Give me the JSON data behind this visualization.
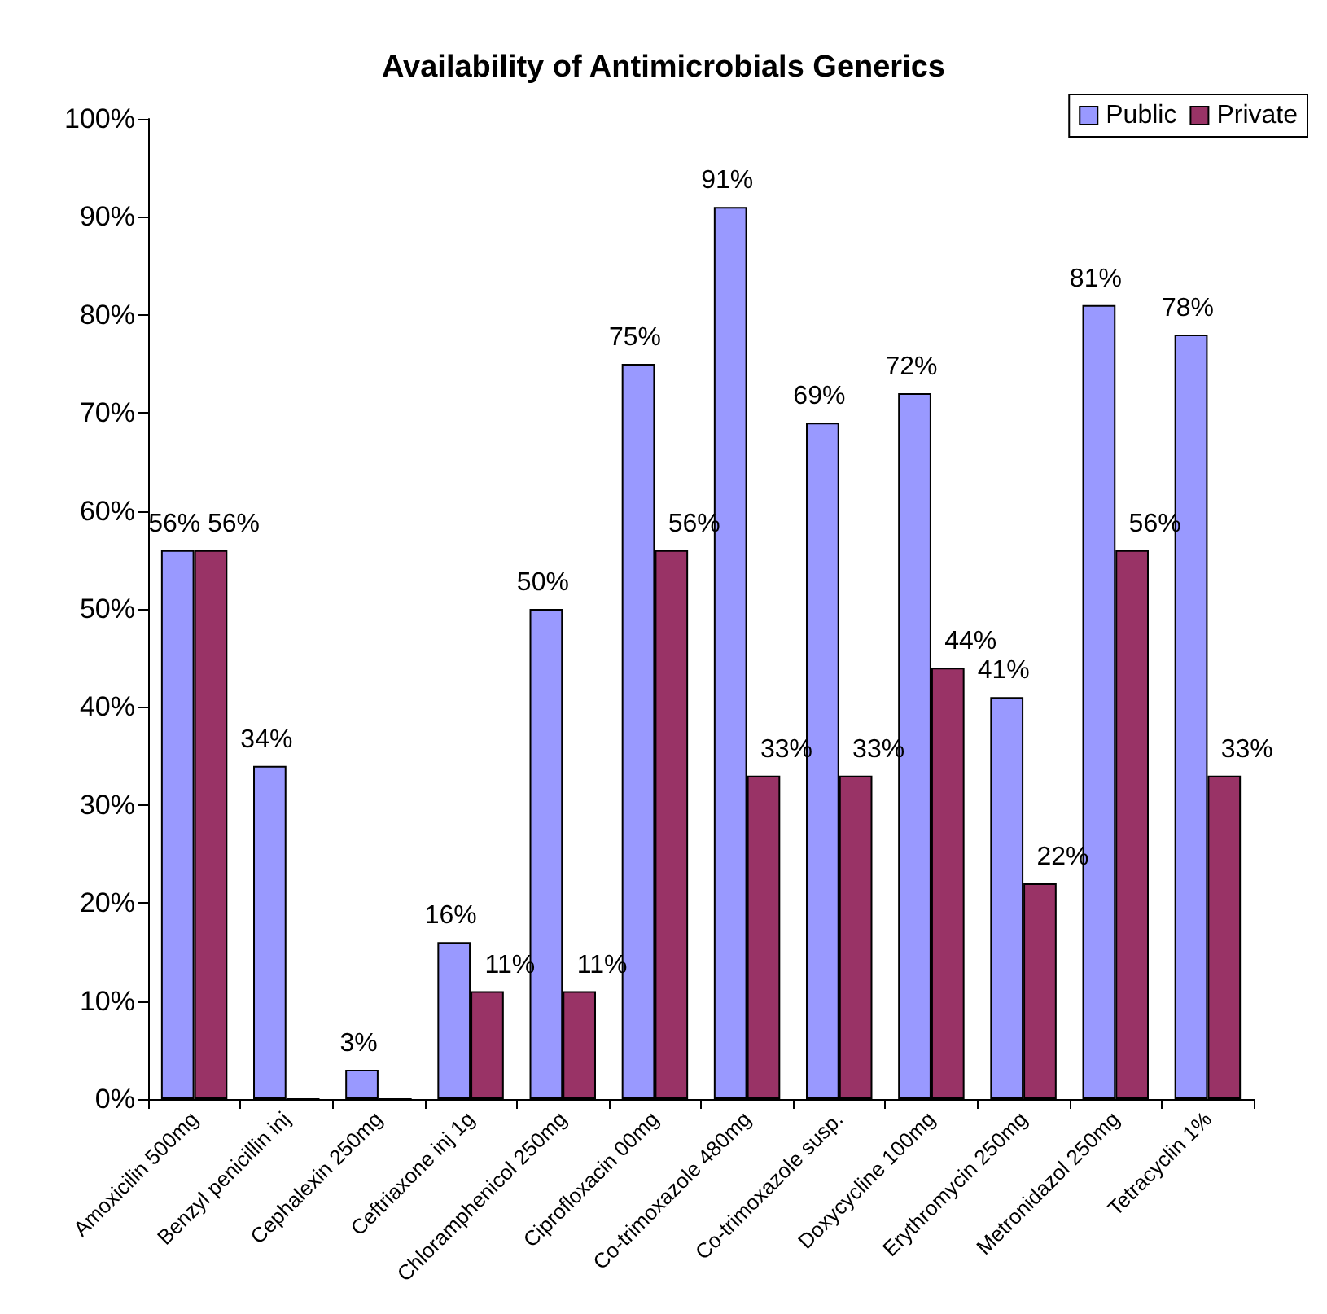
{
  "chart_data": {
    "type": "bar",
    "title": "Availability of Antimicrobials Generics",
    "categories": [
      "Amoxicilin 500mg",
      "Benzyl penicillin inj",
      "Cephalexin 250mg",
      "Ceftriaxone inj 1g",
      "Chloramphenicol 250mg",
      "Ciprofloxacin 00mg",
      "Co-trimoxazole 480mg",
      "Co-trimoxazole susp.",
      "Doxycycline 100mg",
      "Erythromycin 250mg",
      "Metronidazol 250mg",
      "Tetracyclin 1%"
    ],
    "series": [
      {
        "name": "Public",
        "color": "#9999ff",
        "values": [
          56,
          34,
          3,
          16,
          50,
          75,
          91,
          69,
          72,
          41,
          81,
          78
        ],
        "value_labels": [
          "56%",
          "34%",
          "3%",
          "16%",
          "50%",
          "75%",
          "91%",
          "69%",
          "72%",
          "41%",
          "81%",
          "78%"
        ]
      },
      {
        "name": "Private",
        "color": "#993366",
        "values": [
          56,
          0,
          0,
          11,
          11,
          56,
          33,
          33,
          44,
          22,
          56,
          33
        ],
        "value_labels": [
          "56%",
          null,
          null,
          "11%",
          "11%",
          "56%",
          "33%",
          "33%",
          "44%",
          "22%",
          "56%",
          "33%"
        ]
      }
    ],
    "ylim": [
      0,
      100
    ],
    "yticks": [
      {
        "value": 0,
        "label": "0%"
      },
      {
        "value": 10,
        "label": "10%"
      },
      {
        "value": 20,
        "label": "20%"
      },
      {
        "value": 30,
        "label": "30%"
      },
      {
        "value": 40,
        "label": "40%"
      },
      {
        "value": 50,
        "label": "50%"
      },
      {
        "value": 60,
        "label": "60%"
      },
      {
        "value": 70,
        "label": "70%"
      },
      {
        "value": 80,
        "label": "80%"
      },
      {
        "value": 90,
        "label": "90%"
      },
      {
        "value": 100,
        "label": "100%"
      }
    ],
    "legend": "top right",
    "grid": false
  }
}
